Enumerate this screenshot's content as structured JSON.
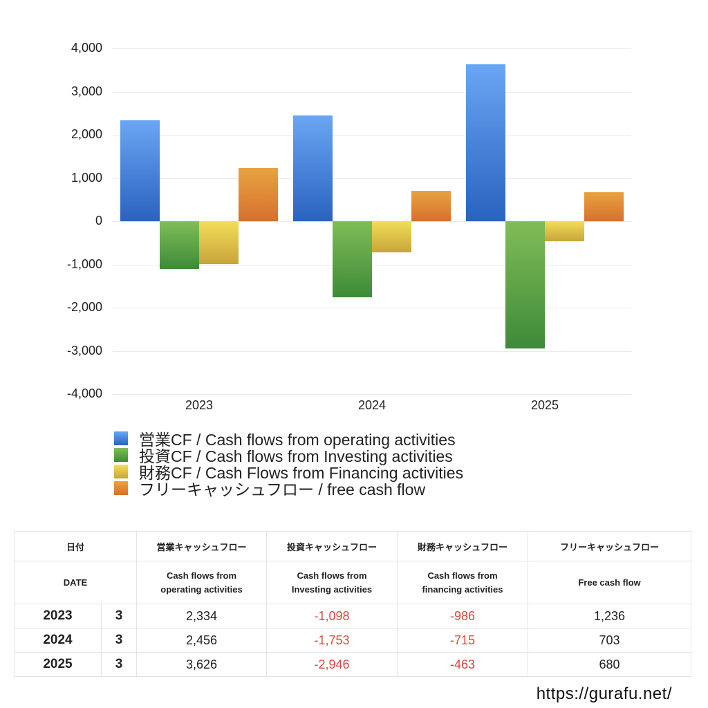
{
  "chart_data": {
    "type": "bar",
    "title": "",
    "xlabel": "",
    "ylabel": "",
    "categories": [
      "2023",
      "2024",
      "2025"
    ],
    "ylim": [
      -4000,
      4000
    ],
    "yticks": [
      4000,
      3000,
      2000,
      1000,
      0,
      -1000,
      -2000,
      -3000,
      -4000
    ],
    "ytick_labels": [
      "4,000",
      "3,000",
      "2,000",
      "1,000",
      "0",
      "-1,000",
      "-2,000",
      "-3,000",
      "-4,000"
    ],
    "grid": true,
    "legend_position": "bottom",
    "series": [
      {
        "name": "営業CF / Cash flows from operating activities",
        "color": "#3f7ed8",
        "values": [
          2334,
          2456,
          3626
        ]
      },
      {
        "name": "投資CF / Cash flows from Investing activities",
        "color": "#5aa347",
        "values": [
          -1098,
          -1753,
          -2946
        ]
      },
      {
        "name": "財務CF / Cash Flows from Financing activities",
        "color": "#e3c444",
        "values": [
          -986,
          -715,
          -463
        ]
      },
      {
        "name": "フリーキャッシュフロー / free cash flow",
        "color": "#df8135",
        "values": [
          1236,
          703,
          680
        ]
      }
    ]
  },
  "legend": {
    "items": [
      {
        "label": "営業CF / Cash flows from operating activities"
      },
      {
        "label": "投資CF / Cash flows from Investing activities"
      },
      {
        "label": "財務CF / Cash Flows from Financing activities"
      },
      {
        "label": "フリーキャッシュフロー / free cash flow"
      }
    ]
  },
  "table": {
    "header_jp": {
      "date": "日付",
      "operating": "営業キャッシュフロー",
      "investing": "投資キャッシュフロー",
      "financing": "財務キャッシュフロー",
      "free": "フリーキャッシュフロー"
    },
    "header_en": {
      "date": "DATE",
      "operating_1": "Cash flows from",
      "operating_2": "operating activities",
      "investing_1": "Cash flows from",
      "investing_2": "Investing activities",
      "financing_1": "Cash flows from",
      "financing_2": "financing activities",
      "free": "Free cash flow"
    },
    "rows": [
      {
        "year": "2023",
        "month": "3",
        "operating": "2,334",
        "investing": "-1,098",
        "financing": "-986",
        "free": "1,236"
      },
      {
        "year": "2024",
        "month": "3",
        "operating": "2,456",
        "investing": "-1,753",
        "financing": "-715",
        "free": "703"
      },
      {
        "year": "2025",
        "month": "3",
        "operating": "3,626",
        "investing": "-2,946",
        "financing": "-463",
        "free": "680"
      }
    ],
    "negative_color": "#d9483b"
  },
  "footer": {
    "url": "https://gurafu.net/"
  }
}
